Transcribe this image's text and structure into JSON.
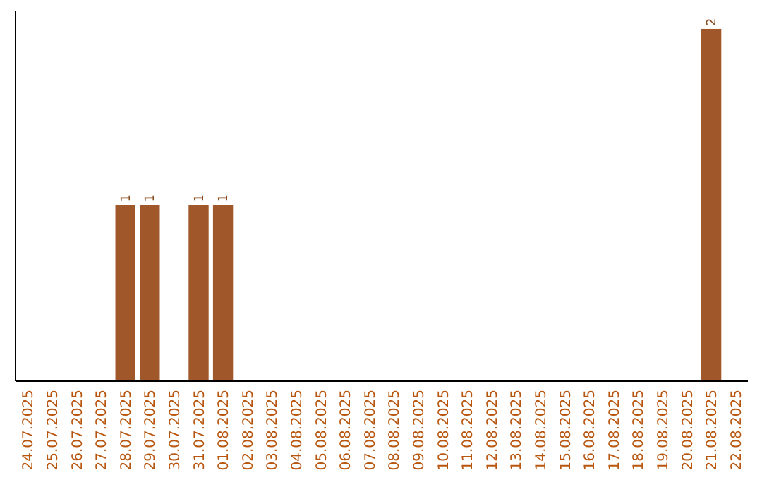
{
  "chart_data": {
    "type": "bar",
    "relative": false,
    "categories": [
      "24.07.2025",
      "25.07.2025",
      "26.07.2025",
      "27.07.2025",
      "28.07.2025",
      "29.07.2025",
      "30.07.2025",
      "31.07.2025",
      "01.08.2025",
      "02.08.2025",
      "03.08.2025",
      "04.08.2025",
      "05.08.2025",
      "06.08.2025",
      "07.08.2025",
      "08.08.2025",
      "09.08.2025",
      "10.08.2025",
      "11.08.2025",
      "12.08.2025",
      "13.08.2025",
      "14.08.2025",
      "15.08.2025",
      "16.08.2025",
      "17.08.2025",
      "18.08.2025",
      "19.08.2025",
      "20.08.2025",
      "21.08.2025",
      "22.08.2025"
    ],
    "values": [
      0,
      0,
      0,
      0,
      1,
      1,
      0,
      1,
      1,
      0,
      0,
      0,
      0,
      0,
      0,
      0,
      0,
      0,
      0,
      0,
      0,
      0,
      0,
      0,
      0,
      0,
      0,
      0,
      2,
      0
    ],
    "value_labels": [
      null,
      null,
      null,
      null,
      "1",
      "1",
      null,
      "1",
      "1",
      null,
      null,
      null,
      null,
      null,
      null,
      null,
      null,
      null,
      null,
      null,
      null,
      null,
      null,
      null,
      null,
      null,
      null,
      null,
      "2",
      null
    ],
    "color": "#a0582a",
    "grid": false
  }
}
